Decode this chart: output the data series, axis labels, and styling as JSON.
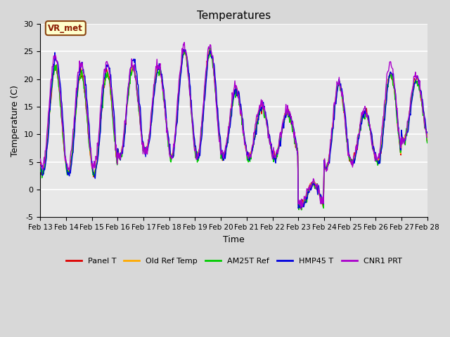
{
  "title": "Temperatures",
  "xlabel": "Time",
  "ylabel": "Temperature (C)",
  "ylim": [
    -5,
    30
  ],
  "xlim": [
    0,
    360
  ],
  "series_colors": {
    "Panel T": "#dd0000",
    "Old Ref Temp": "#ffaa00",
    "AM25T Ref": "#00cc00",
    "HMP45 T": "#0000dd",
    "CNR1 PRT": "#aa00cc"
  },
  "xtick_labels": [
    "Feb 13",
    "Feb 14",
    "Feb 15",
    "Feb 16",
    "Feb 17",
    "Feb 18",
    "Feb 19",
    "Feb 20",
    "Feb 21",
    "Feb 22",
    "Feb 23",
    "Feb 24",
    "Feb 25",
    "Feb 26",
    "Feb 27",
    "Feb 28"
  ],
  "xtick_positions": [
    0,
    24,
    48,
    72,
    96,
    120,
    144,
    168,
    192,
    216,
    240,
    264,
    288,
    312,
    336,
    360
  ],
  "ytick_labels": [
    "-5",
    "0",
    "5",
    "10",
    "15",
    "20",
    "25",
    "30"
  ],
  "ytick_values": [
    -5,
    0,
    5,
    10,
    15,
    20,
    25,
    30
  ],
  "annotation_text": "VR_met",
  "background_color": "#d8d8d8",
  "plot_bg_color": "#e8e8e8",
  "grid_color": "#f5f5f5",
  "linewidth": 1.0,
  "figsize": [
    6.4,
    4.8
  ],
  "dpi": 100,
  "day_amps": [
    [
      3,
      22
    ],
    [
      3,
      21
    ],
    [
      3,
      21
    ],
    [
      6,
      22
    ],
    [
      7,
      22
    ],
    [
      6,
      25
    ],
    [
      6,
      25
    ],
    [
      6,
      18
    ],
    [
      6,
      15
    ],
    [
      6,
      14
    ],
    [
      -3,
      1
    ],
    [
      4,
      19
    ],
    [
      5,
      14
    ],
    [
      5,
      21
    ],
    [
      9,
      20
    ],
    [
      9,
      13
    ]
  ]
}
